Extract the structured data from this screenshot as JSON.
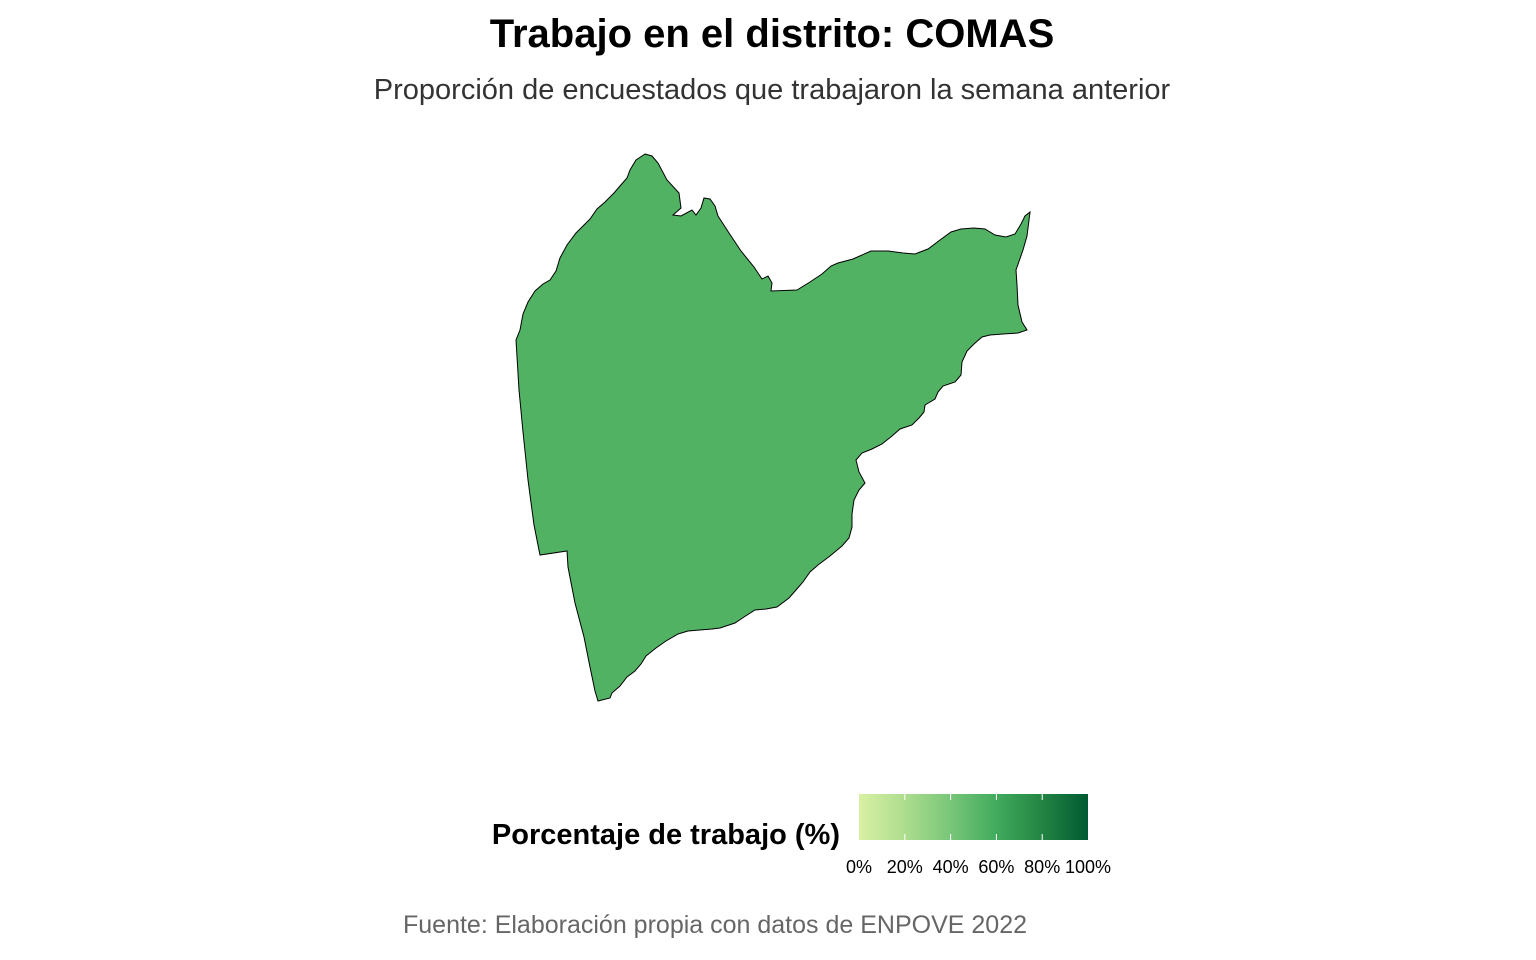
{
  "title": "Trabajo en el distrito: COMAS",
  "subtitle": "Proporción de encuestados que trabajaron la semana anterior",
  "caption": "Fuente: Elaboración propia con datos de ENPOVE 2022",
  "legend": {
    "title": "Porcentaje de trabajo (%)",
    "ticks": [
      "0%",
      "20%",
      "40%",
      "60%",
      "80%",
      "100%"
    ],
    "scale_min": 0,
    "scale_max": 100,
    "gradient_colors": [
      "#d9f0a3",
      "#addd8e",
      "#78c679",
      "#41ab5d",
      "#238443",
      "#005a32"
    ]
  },
  "map": {
    "district": "COMAS",
    "fill_color": "#52b264",
    "border_color": "#000000"
  }
}
